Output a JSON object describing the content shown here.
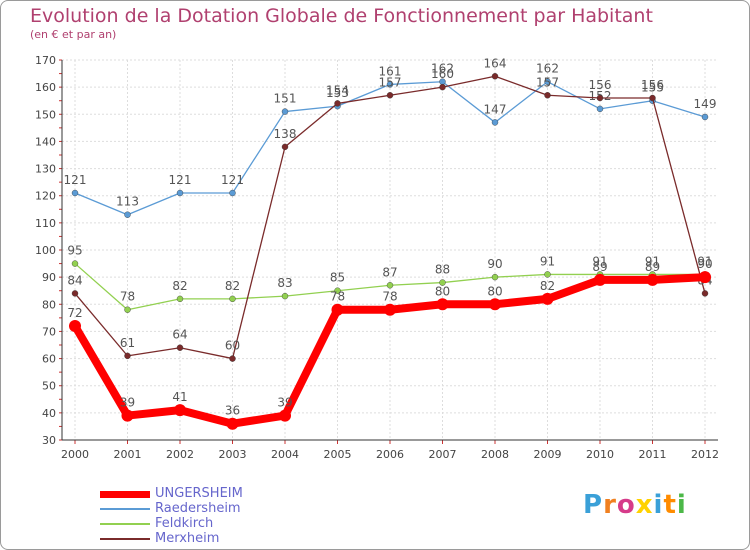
{
  "title": "Evolution de la Dotation Globale de Fonctionnement par Habitant",
  "subtitle": "(en € et par an)",
  "logo": "Proxiti",
  "chart_data": {
    "type": "line",
    "title": "Evolution de la Dotation Globale de Fonctionnement par Habitant",
    "ylabel": "(en € et par an)",
    "xlabel": "",
    "categories": [
      "2000",
      "2001",
      "2002",
      "2003",
      "2004",
      "2005",
      "2006",
      "2007",
      "2008",
      "2009",
      "2010",
      "2011",
      "2012"
    ],
    "ylim": [
      30,
      170
    ],
    "yticks": [
      30,
      40,
      50,
      60,
      70,
      80,
      90,
      100,
      110,
      120,
      130,
      140,
      150,
      160,
      170
    ],
    "grid": true,
    "legend_position": "bottom-left",
    "series": [
      {
        "name": "UNGERSHEIM",
        "color": "#ff0000",
        "values": [
          72,
          39,
          41,
          36,
          39,
          78,
          78,
          80,
          80,
          82,
          89,
          89,
          90
        ]
      },
      {
        "name": "Raedersheim",
        "color": "#5b9bd5",
        "values": [
          121,
          113,
          121,
          121,
          151,
          153,
          161,
          162,
          147,
          162,
          152,
          155,
          149
        ]
      },
      {
        "name": "Feldkirch",
        "color": "#92d050",
        "values": [
          95,
          78,
          82,
          82,
          83,
          85,
          87,
          88,
          90,
          91,
          91,
          91,
          91
        ]
      },
      {
        "name": "Merxheim",
        "color": "#7a2b2b",
        "values": [
          84,
          61,
          64,
          60,
          138,
          154,
          157,
          160,
          164,
          157,
          156,
          156,
          84
        ]
      }
    ]
  }
}
